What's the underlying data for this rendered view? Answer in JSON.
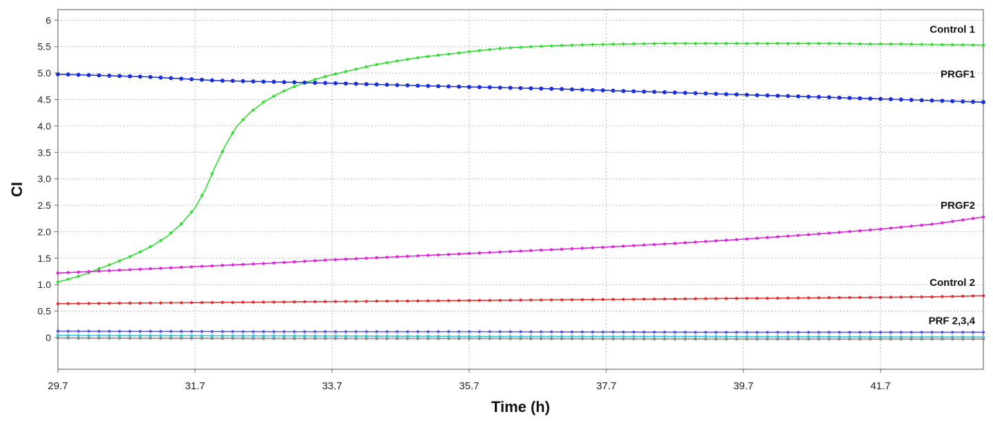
{
  "chart_data": {
    "type": "line",
    "xlabel": "Time (h)",
    "ylabel": "CI",
    "xlim": [
      29.7,
      43.2
    ],
    "ylim": [
      -0.6,
      6.2
    ],
    "grid": true,
    "x_ticks": [
      "29.7",
      "31.7",
      "33.7",
      "35.7",
      "37.7",
      "39.7",
      "41.7"
    ],
    "y_ticks": [
      "6",
      "5.5",
      "5.0",
      "4.5",
      "4.0",
      "3.5",
      "3.0",
      "2.5",
      "2.0",
      "1.5",
      "1.0",
      "0.5",
      "0"
    ],
    "series": [
      {
        "name": "Control 1",
        "color": "#33dd33",
        "x": [
          29.7,
          29.9,
          30.1,
          30.3,
          30.5,
          30.7,
          30.9,
          31.1,
          31.3,
          31.5,
          31.7,
          31.85,
          32.0,
          32.15,
          32.3,
          32.5,
          32.7,
          32.9,
          33.1,
          33.3,
          33.5,
          33.7,
          34.0,
          34.3,
          34.6,
          35.0,
          35.4,
          35.8,
          36.2,
          36.6,
          37.0,
          37.5,
          38.0,
          38.5,
          39.0,
          39.5,
          40.0,
          40.5,
          41.0,
          41.5,
          42.0,
          42.5,
          43.2
        ],
        "values": [
          1.05,
          1.12,
          1.2,
          1.3,
          1.4,
          1.5,
          1.62,
          1.75,
          1.92,
          2.15,
          2.45,
          2.8,
          3.25,
          3.65,
          3.98,
          4.25,
          4.45,
          4.6,
          4.72,
          4.82,
          4.9,
          4.97,
          5.06,
          5.15,
          5.22,
          5.3,
          5.36,
          5.42,
          5.47,
          5.5,
          5.52,
          5.54,
          5.55,
          5.56,
          5.56,
          5.56,
          5.56,
          5.56,
          5.56,
          5.55,
          5.55,
          5.54,
          5.53
        ]
      },
      {
        "name": "PRGF1",
        "color": "#1a2fd6",
        "x": [
          29.7,
          31.0,
          32.0,
          33.0,
          34.0,
          35.0,
          36.0,
          37.0,
          38.0,
          39.0,
          40.0,
          41.0,
          42.0,
          43.2
        ],
        "values": [
          4.98,
          4.93,
          4.86,
          4.83,
          4.8,
          4.76,
          4.73,
          4.7,
          4.66,
          4.62,
          4.58,
          4.54,
          4.5,
          4.45
        ]
      },
      {
        "name": "PRGF2",
        "color": "#dd22dd",
        "x": [
          29.7,
          30.7,
          31.7,
          32.7,
          33.7,
          34.7,
          35.7,
          36.7,
          37.7,
          38.7,
          39.7,
          40.7,
          41.7,
          42.5,
          43.2
        ],
        "values": [
          1.22,
          1.28,
          1.34,
          1.4,
          1.47,
          1.53,
          1.59,
          1.65,
          1.71,
          1.78,
          1.86,
          1.95,
          2.05,
          2.15,
          2.28
        ]
      },
      {
        "name": "Control 2",
        "color": "#e03030",
        "x": [
          29.7,
          30.7,
          31.7,
          32.7,
          33.7,
          34.7,
          35.7,
          36.7,
          37.7,
          38.7,
          39.7,
          40.7,
          41.7,
          42.5,
          43.2
        ],
        "values": [
          0.64,
          0.65,
          0.66,
          0.67,
          0.68,
          0.69,
          0.7,
          0.71,
          0.72,
          0.73,
          0.74,
          0.75,
          0.76,
          0.77,
          0.79
        ]
      },
      {
        "name": "PRF 2,3,4",
        "color": "#5a5adf",
        "x": [
          29.7,
          33.0,
          36.0,
          39.0,
          43.2
        ],
        "values": [
          0.12,
          0.11,
          0.11,
          0.1,
          0.1
        ]
      },
      {
        "name": "",
        "color": "#33c8dd",
        "x": [
          29.7,
          33.0,
          36.0,
          39.0,
          43.2
        ],
        "values": [
          0.04,
          0.03,
          0.02,
          0.02,
          0.01
        ]
      },
      {
        "name": "",
        "color": "#8a8a8a",
        "x": [
          29.7,
          33.0,
          36.0,
          39.0,
          43.2
        ],
        "values": [
          -0.01,
          -0.02,
          -0.02,
          -0.03,
          -0.03
        ]
      }
    ]
  }
}
